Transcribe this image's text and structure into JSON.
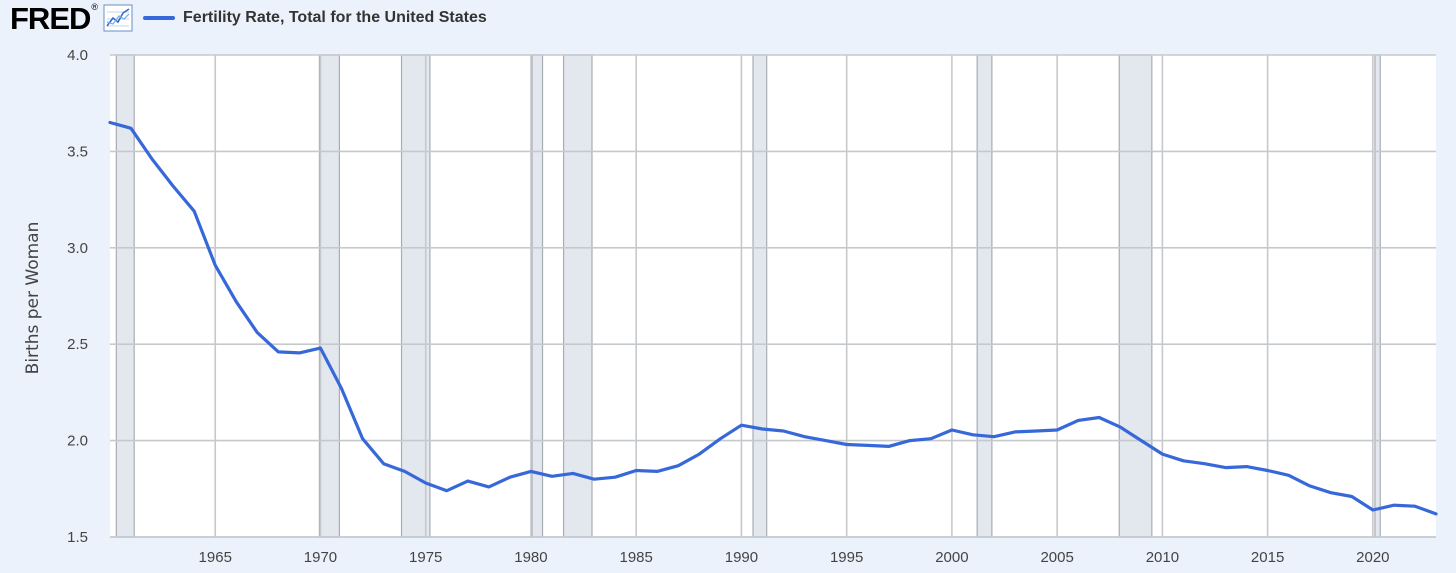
{
  "header": {
    "logo_text": "FRED",
    "logo_reg": "®",
    "legend_label": "Fertility Rate, Total for the United States",
    "line_color": "#3768d9"
  },
  "chart_data": {
    "type": "line",
    "title": "",
    "xlabel": "",
    "ylabel": "Births per Woman",
    "xlim": [
      1960,
      2023
    ],
    "ylim": [
      1.5,
      4.0
    ],
    "yticks": [
      1.5,
      2.0,
      2.5,
      3.0,
      3.5,
      4.0
    ],
    "ytick_labels": [
      "1.5",
      "2.0",
      "2.5",
      "3.0",
      "3.5",
      "4.0"
    ],
    "xticks": [
      1965,
      1970,
      1975,
      1980,
      1985,
      1990,
      1995,
      2000,
      2005,
      2010,
      2015,
      2020
    ],
    "xtick_labels": [
      "1965",
      "1970",
      "1975",
      "1980",
      "1985",
      "1990",
      "1995",
      "2000",
      "2005",
      "2010",
      "2015",
      "2020"
    ],
    "grid": true,
    "recession_shading": [
      [
        1960.3,
        1961.15
      ],
      [
        1969.95,
        1970.9
      ],
      [
        1973.85,
        1975.2
      ],
      [
        1980.05,
        1980.55
      ],
      [
        1981.55,
        1982.9
      ],
      [
        1990.55,
        1991.2
      ],
      [
        2001.2,
        2001.9
      ],
      [
        2007.95,
        2009.5
      ],
      [
        2020.1,
        2020.35
      ]
    ],
    "series": [
      {
        "name": "Fertility Rate, Total for the United States",
        "x": [
          1960,
          1961,
          1962,
          1963,
          1964,
          1965,
          1966,
          1967,
          1968,
          1969,
          1970,
          1971,
          1972,
          1973,
          1974,
          1975,
          1976,
          1977,
          1978,
          1979,
          1980,
          1981,
          1982,
          1983,
          1984,
          1985,
          1986,
          1987,
          1988,
          1989,
          1990,
          1991,
          1992,
          1993,
          1994,
          1995,
          1996,
          1997,
          1998,
          1999,
          2000,
          2001,
          2002,
          2003,
          2004,
          2005,
          2006,
          2007,
          2008,
          2009,
          2010,
          2011,
          2012,
          2013,
          2014,
          2015,
          2016,
          2017,
          2018,
          2019,
          2020,
          2021,
          2022,
          2023
        ],
        "values": [
          3.65,
          3.62,
          3.46,
          3.32,
          3.19,
          2.91,
          2.72,
          2.56,
          2.46,
          2.455,
          2.48,
          2.27,
          2.01,
          1.88,
          1.84,
          1.78,
          1.74,
          1.79,
          1.76,
          1.81,
          1.84,
          1.815,
          1.83,
          1.8,
          1.81,
          1.845,
          1.84,
          1.87,
          1.93,
          2.01,
          2.08,
          2.06,
          2.05,
          2.02,
          2.0,
          1.98,
          1.975,
          1.97,
          2.0,
          2.01,
          2.055,
          2.03,
          2.02,
          2.045,
          2.05,
          2.055,
          2.105,
          2.12,
          2.07,
          2.0,
          1.93,
          1.895,
          1.88,
          1.86,
          1.865,
          1.845,
          1.82,
          1.765,
          1.73,
          1.71,
          1.64,
          1.665,
          1.66,
          1.62
        ]
      }
    ]
  }
}
